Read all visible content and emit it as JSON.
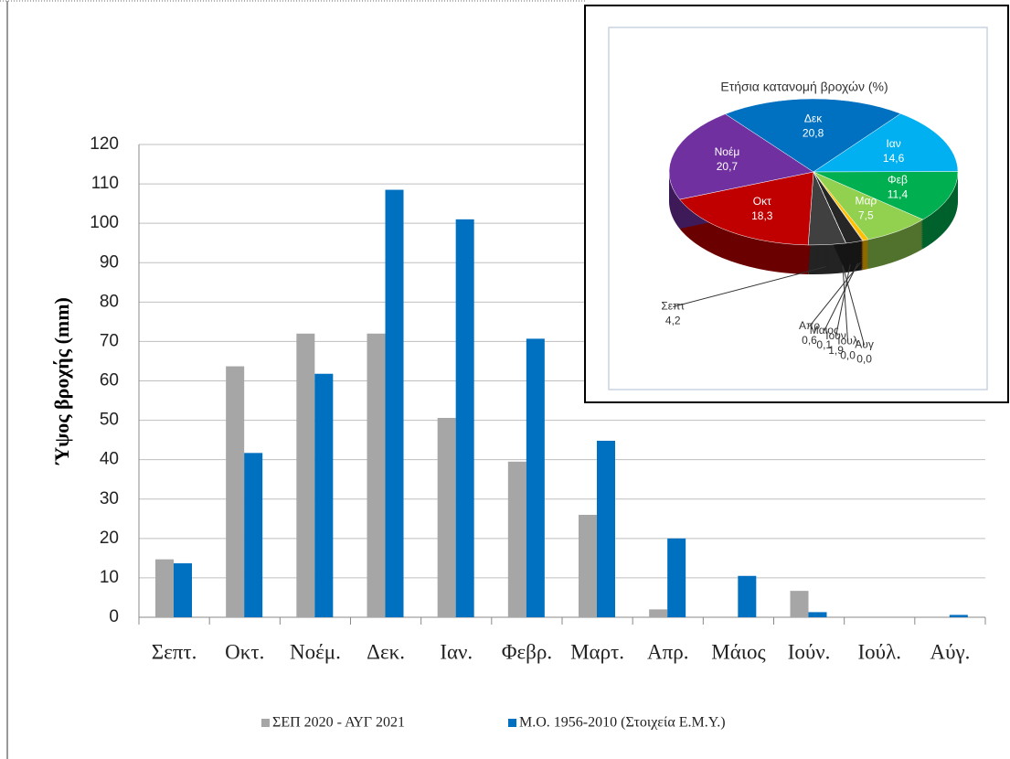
{
  "chart_data": [
    {
      "type": "bar",
      "y_label": "Ύψος βροχής (mm)",
      "categories": [
        "Σεπτ.",
        "Οκτ.",
        "Νοέμ.",
        "Δεκ.",
        "Ιαν.",
        "Φεβρ.",
        "Μαρτ.",
        "Απρ.",
        "Μάιος",
        "Ιούν.",
        "Ιούλ.",
        "Αύγ."
      ],
      "series": [
        {
          "name": "ΣΕΠ 2020 - ΑΥΓ 2021",
          "color": "#a6a6a6",
          "values": [
            14.7,
            63.7,
            72,
            72,
            50.6,
            39.5,
            26,
            2,
            0,
            6.7,
            0,
            0
          ]
        },
        {
          "name": "Μ.Ο. 1956-2010  (Στοιχεία Ε.Μ.Υ.)",
          "color": "#0070c0",
          "values": [
            13.7,
            41.7,
            61.8,
            108.5,
            101,
            70.7,
            44.8,
            20,
            10.5,
            1.3,
            0,
            0.6
          ]
        }
      ],
      "ylim": [
        0,
        120
      ],
      "yticks": [
        0,
        10,
        20,
        30,
        40,
        50,
        60,
        70,
        80,
        90,
        100,
        110,
        120
      ],
      "grid": true,
      "legend": "bottom"
    },
    {
      "type": "pie",
      "title": "Ετήσια κατανομή βροχών (%)",
      "categories": [
        "Σεπτ",
        "Οκτ",
        "Νοέμ",
        "Δεκ",
        "Ιαν",
        "Φεβ",
        "Μαρ",
        "Απρ",
        "Μαιος",
        "Ιουν",
        "Ιουλ",
        "Αυγ"
      ],
      "values": [
        4.2,
        18.3,
        20.7,
        20.8,
        14.6,
        11.4,
        7.5,
        0.6,
        0.1,
        1.9,
        0.0,
        0.0
      ],
      "value_labels": [
        "4,2",
        "18,3",
        "20,7",
        "20,8",
        "14,6",
        "11,4",
        "7,5",
        "0,6",
        "0,1",
        "1,9",
        "0,0",
        "0,0"
      ],
      "colors": [
        "#404040",
        "#c00000",
        "#7030a0",
        "#0070c0",
        "#00b0f0",
        "#00b050",
        "#92d050",
        "#ffc000",
        "#e46c0a",
        "#262626",
        "#7f7f7f",
        "#595959"
      ]
    }
  ]
}
